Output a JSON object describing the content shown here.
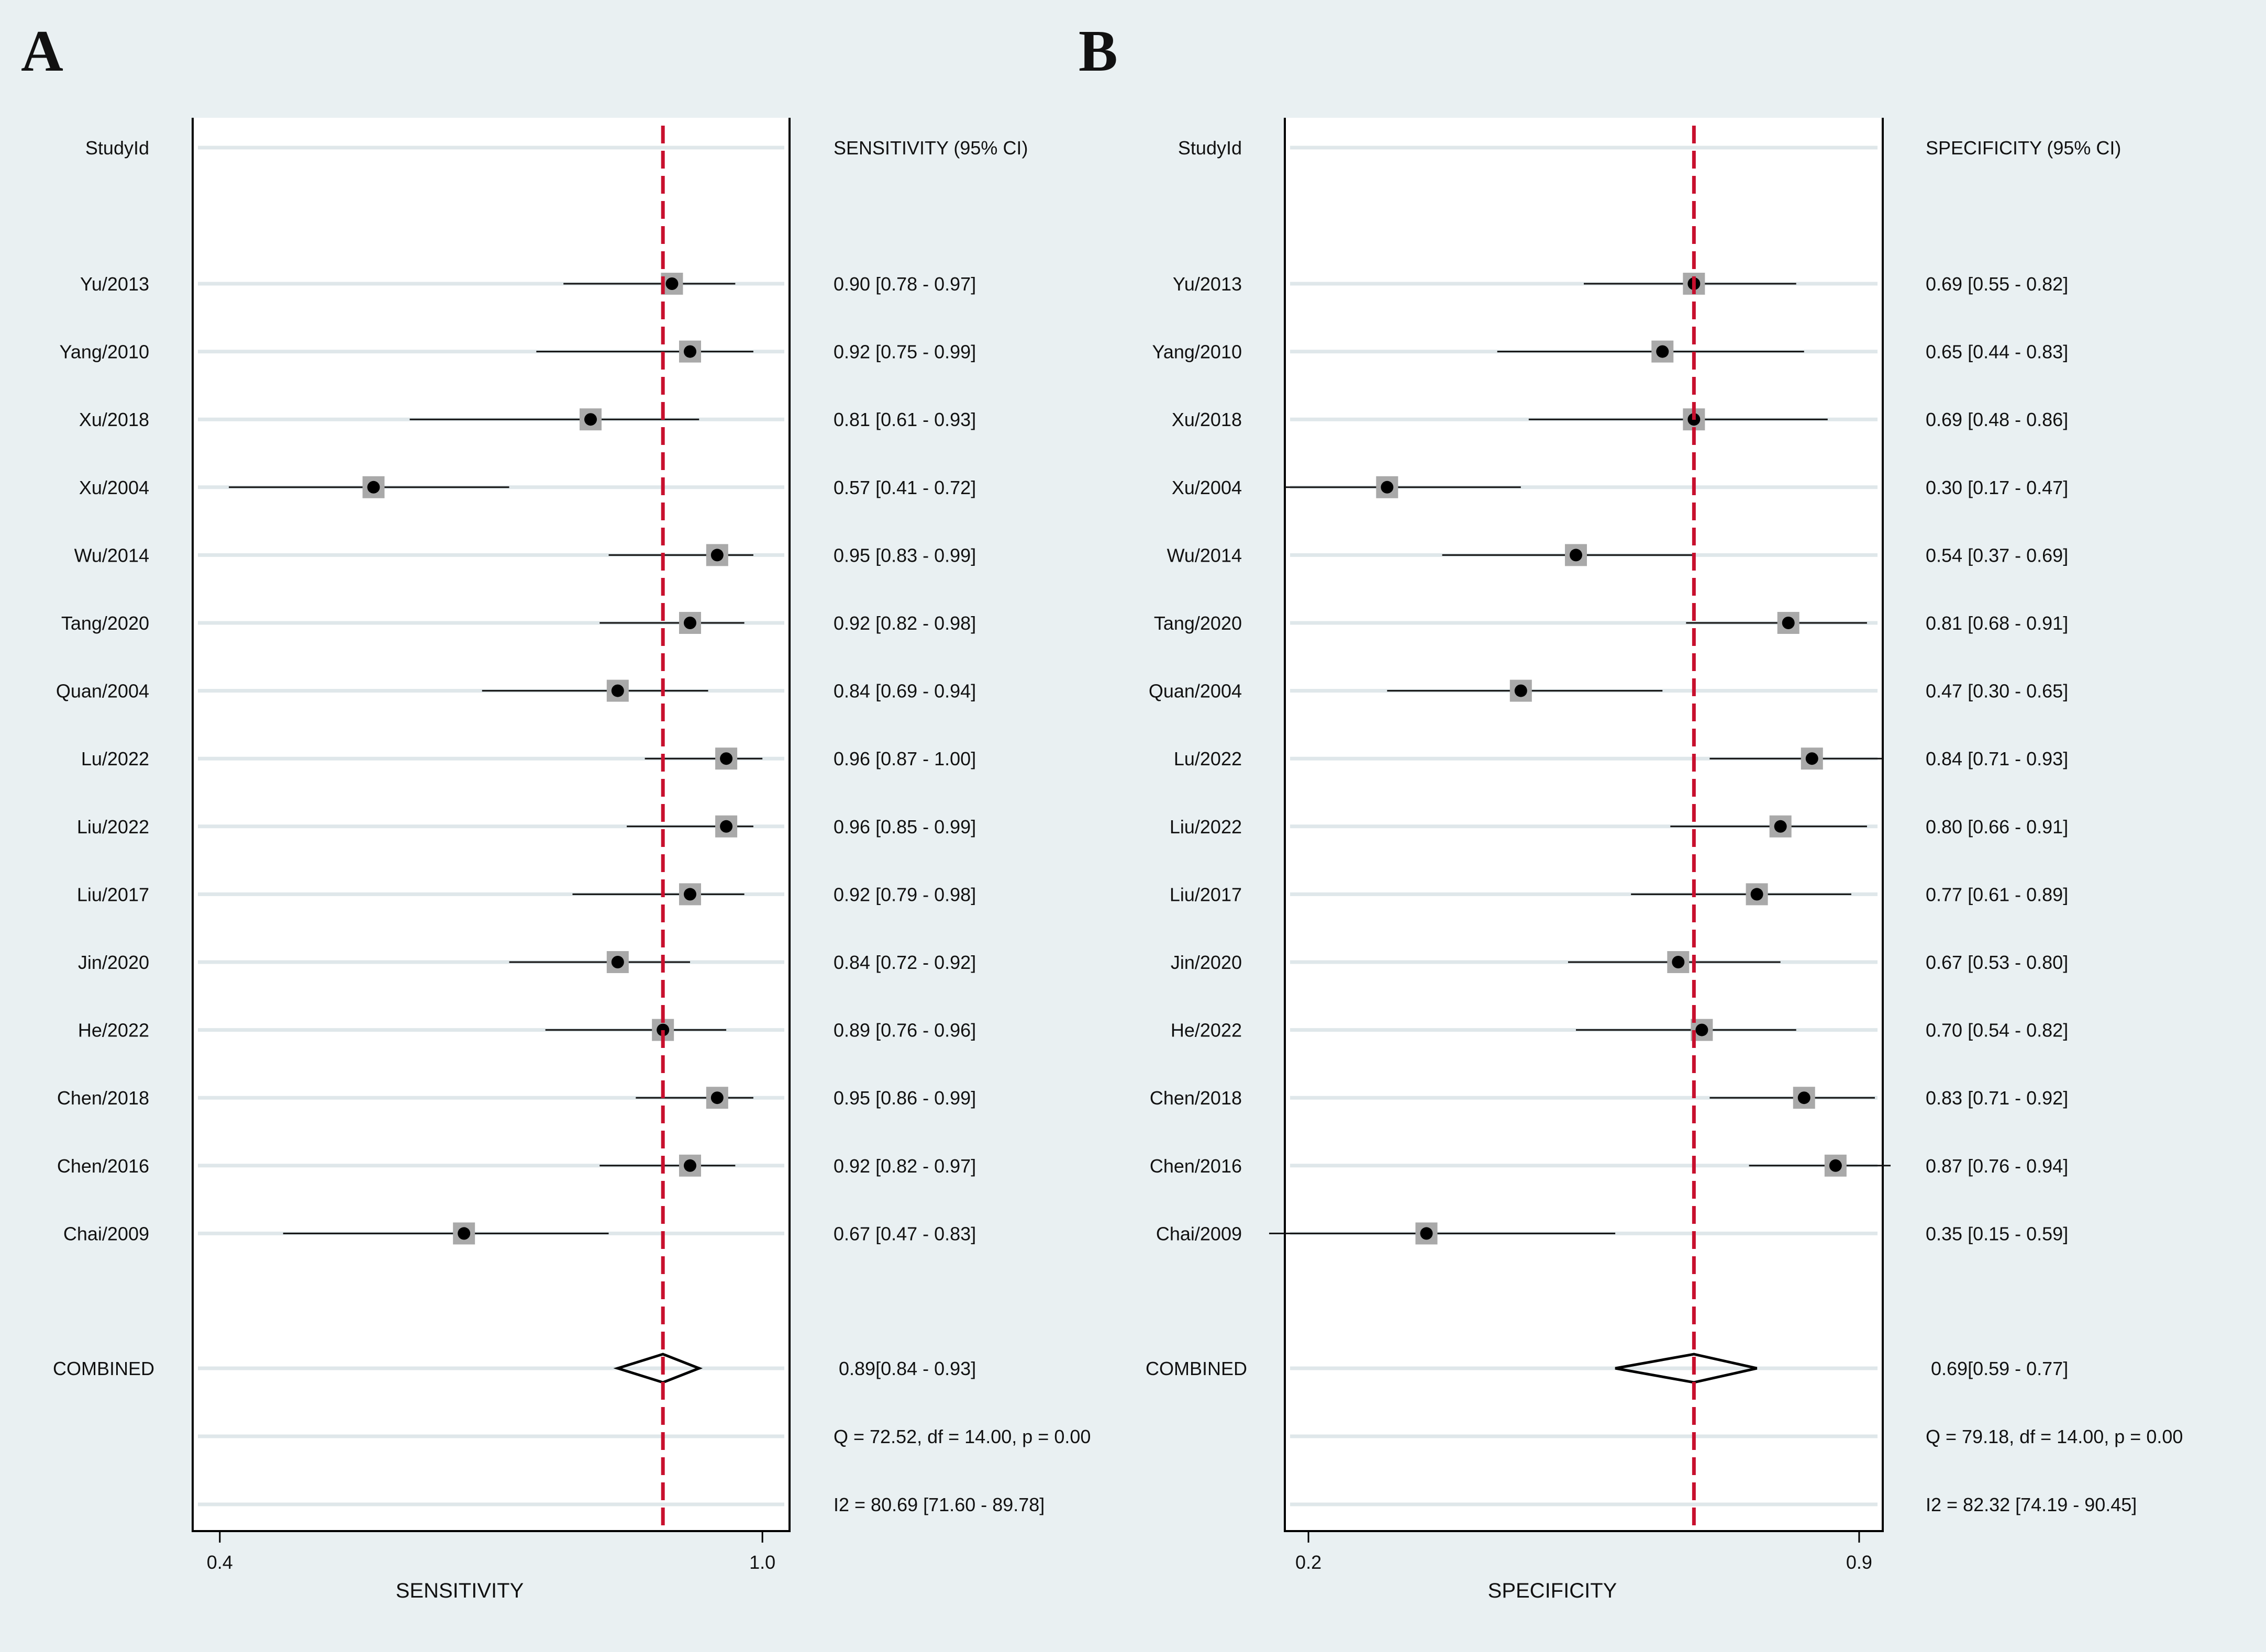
{
  "panel_labels": [
    "A",
    "B"
  ],
  "chart_data": [
    {
      "type": "forest",
      "panel": "A",
      "id_header": "StudyId",
      "ci_header": "SENSITIVITY (95% CI)",
      "xlabel": "SENSITIVITY",
      "xlim": [
        0.37,
        1.03
      ],
      "xticks": [
        0.4,
        1.0
      ],
      "xtick_labels": [
        "0.4",
        "1.0"
      ],
      "reference_line": 0.89,
      "reference_color": "#c8102e",
      "studies": [
        {
          "name": "Yu/2013",
          "est": 0.9,
          "lo": 0.78,
          "hi": 0.97,
          "label": "0.90 [0.78 - 0.97]"
        },
        {
          "name": "Yang/2010",
          "est": 0.92,
          "lo": 0.75,
          "hi": 0.99,
          "label": "0.92 [0.75 - 0.99]"
        },
        {
          "name": "Xu/2018",
          "est": 0.81,
          "lo": 0.61,
          "hi": 0.93,
          "label": "0.81 [0.61 - 0.93]"
        },
        {
          "name": "Xu/2004",
          "est": 0.57,
          "lo": 0.41,
          "hi": 0.72,
          "label": "0.57 [0.41 - 0.72]"
        },
        {
          "name": "Wu/2014",
          "est": 0.95,
          "lo": 0.83,
          "hi": 0.99,
          "label": "0.95 [0.83 - 0.99]"
        },
        {
          "name": "Tang/2020",
          "est": 0.92,
          "lo": 0.82,
          "hi": 0.98,
          "label": "0.92 [0.82 - 0.98]"
        },
        {
          "name": "Quan/2004",
          "est": 0.84,
          "lo": 0.69,
          "hi": 0.94,
          "label": "0.84 [0.69 - 0.94]"
        },
        {
          "name": "Lu/2022",
          "est": 0.96,
          "lo": 0.87,
          "hi": 1.0,
          "label": "0.96 [0.87 - 1.00]"
        },
        {
          "name": "Liu/2022",
          "est": 0.96,
          "lo": 0.85,
          "hi": 0.99,
          "label": "0.96 [0.85 - 0.99]"
        },
        {
          "name": "Liu/2017",
          "est": 0.92,
          "lo": 0.79,
          "hi": 0.98,
          "label": "0.92 [0.79 - 0.98]"
        },
        {
          "name": "Jin/2020",
          "est": 0.84,
          "lo": 0.72,
          "hi": 0.92,
          "label": "0.84 [0.72 - 0.92]"
        },
        {
          "name": "He/2022",
          "est": 0.89,
          "lo": 0.76,
          "hi": 0.96,
          "label": "0.89 [0.76 - 0.96]"
        },
        {
          "name": "Chen/2018",
          "est": 0.95,
          "lo": 0.86,
          "hi": 0.99,
          "label": "0.95 [0.86 - 0.99]"
        },
        {
          "name": "Chen/2016",
          "est": 0.92,
          "lo": 0.82,
          "hi": 0.97,
          "label": "0.92 [0.82 - 0.97]"
        },
        {
          "name": "Chai/2009",
          "est": 0.67,
          "lo": 0.47,
          "hi": 0.83,
          "label": "0.67 [0.47 - 0.83]"
        }
      ],
      "combined": {
        "name": "COMBINED",
        "est": 0.89,
        "lo": 0.84,
        "hi": 0.93,
        "label": "0.89[0.84 - 0.93]"
      },
      "heterogeneity_q": "Q = 72.52, df = 14.00, p =  0.00",
      "heterogeneity_i2": "I2 = 80.69 [71.60 - 89.78]"
    },
    {
      "type": "forest",
      "panel": "B",
      "id_header": "StudyId",
      "ci_header": "SPECIFICITY (95% CI)",
      "xlabel": "SPECIFICITY",
      "xlim": [
        0.17,
        0.93
      ],
      "xticks": [
        0.2,
        0.9
      ],
      "xtick_labels": [
        "0.2",
        "0.9"
      ],
      "reference_line": 0.69,
      "reference_color": "#c8102e",
      "studies": [
        {
          "name": "Yu/2013",
          "est": 0.69,
          "lo": 0.55,
          "hi": 0.82,
          "label": "0.69 [0.55 - 0.82]"
        },
        {
          "name": "Yang/2010",
          "est": 0.65,
          "lo": 0.44,
          "hi": 0.83,
          "label": "0.65 [0.44 - 0.83]"
        },
        {
          "name": "Xu/2018",
          "est": 0.69,
          "lo": 0.48,
          "hi": 0.86,
          "label": "0.69 [0.48 - 0.86]"
        },
        {
          "name": "Xu/2004",
          "est": 0.3,
          "lo": 0.17,
          "hi": 0.47,
          "label": "0.30 [0.17 - 0.47]"
        },
        {
          "name": "Wu/2014",
          "est": 0.54,
          "lo": 0.37,
          "hi": 0.69,
          "label": "0.54 [0.37 - 0.69]"
        },
        {
          "name": "Tang/2020",
          "est": 0.81,
          "lo": 0.68,
          "hi": 0.91,
          "label": "0.81 [0.68 - 0.91]"
        },
        {
          "name": "Quan/2004",
          "est": 0.47,
          "lo": 0.3,
          "hi": 0.65,
          "label": "0.47 [0.30 - 0.65]"
        },
        {
          "name": "Lu/2022",
          "est": 0.84,
          "lo": 0.71,
          "hi": 0.93,
          "label": "0.84 [0.71 - 0.93]"
        },
        {
          "name": "Liu/2022",
          "est": 0.8,
          "lo": 0.66,
          "hi": 0.91,
          "label": "0.80 [0.66 - 0.91]"
        },
        {
          "name": "Liu/2017",
          "est": 0.77,
          "lo": 0.61,
          "hi": 0.89,
          "label": "0.77 [0.61 - 0.89]"
        },
        {
          "name": "Jin/2020",
          "est": 0.67,
          "lo": 0.53,
          "hi": 0.8,
          "label": "0.67 [0.53 - 0.80]"
        },
        {
          "name": "He/2022",
          "est": 0.7,
          "lo": 0.54,
          "hi": 0.82,
          "label": "0.70 [0.54 - 0.82]"
        },
        {
          "name": "Chen/2018",
          "est": 0.83,
          "lo": 0.71,
          "hi": 0.92,
          "label": "0.83 [0.71 - 0.92]"
        },
        {
          "name": "Chen/2016",
          "est": 0.87,
          "lo": 0.76,
          "hi": 0.94,
          "label": "0.87 [0.76 - 0.94]"
        },
        {
          "name": "Chai/2009",
          "est": 0.35,
          "lo": 0.15,
          "hi": 0.59,
          "label": "0.35 [0.15 - 0.59]"
        }
      ],
      "combined": {
        "name": "COMBINED",
        "est": 0.69,
        "lo": 0.59,
        "hi": 0.77,
        "label": "0.69[0.59 - 0.77]"
      },
      "heterogeneity_q": "Q = 79.18, df = 14.00, p =  0.00",
      "heterogeneity_i2": "I2 = 82.32 [74.19 - 90.45]"
    }
  ]
}
